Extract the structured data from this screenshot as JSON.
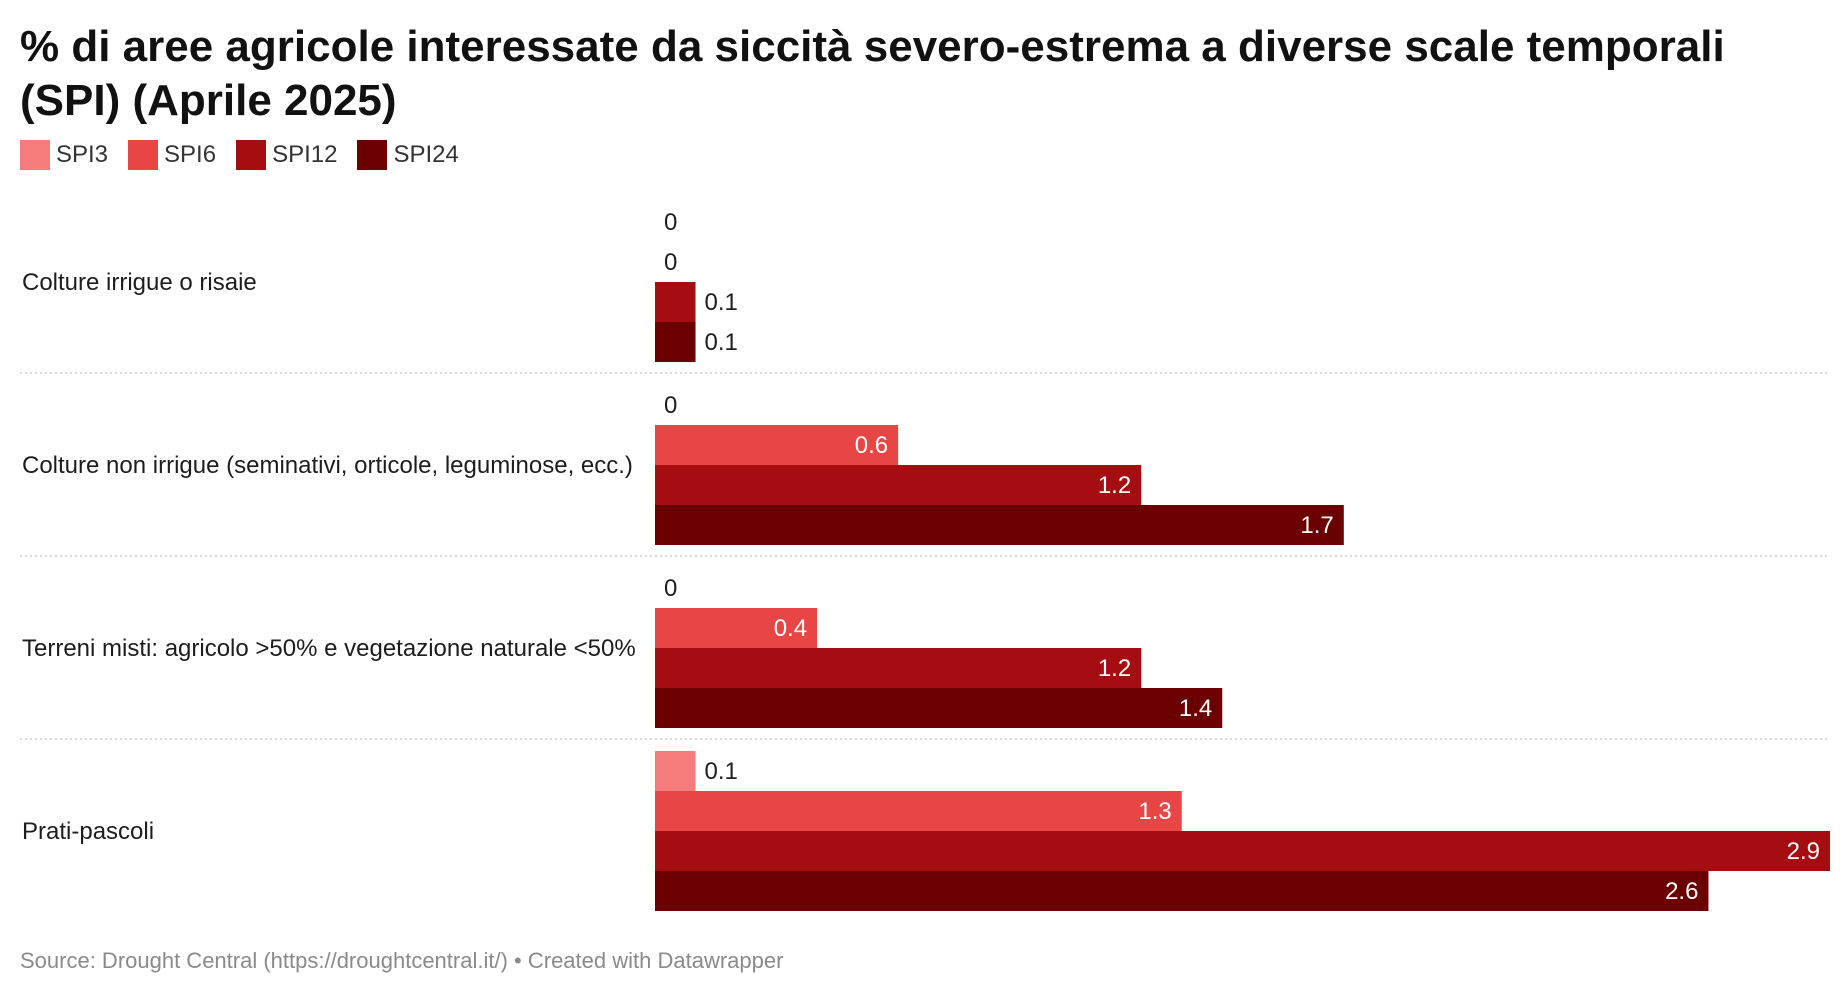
{
  "title": "% di aree agricole interessate da siccità severo-estrema a diverse scale temporali (SPI) (Aprile 2025)",
  "footer": {
    "source": "Source: Drought Central (https://droughtcentral.it/)",
    "separator": "•",
    "credit": "Created with Datawrapper"
  },
  "chart_data": {
    "type": "bar",
    "orientation": "horizontal",
    "title": "% di aree agricole interessate da siccità severo-estrema a diverse scale temporali (SPI) (Aprile 2025)",
    "categories": [
      "Colture irrigue o risaie",
      "Colture non irrigue (seminativi, orticole, leguminose, ecc.)",
      "Terreni misti: agricolo >50% e vegetazione naturale <50%",
      "Prati-pascoli"
    ],
    "series": [
      {
        "name": "SPI3",
        "color": "#f47c7c",
        "values": [
          0,
          0,
          0,
          0.1
        ]
      },
      {
        "name": "SPI6",
        "color": "#e84545",
        "values": [
          0,
          0.6,
          0.4,
          1.3
        ]
      },
      {
        "name": "SPI12",
        "color": "#a50d10",
        "values": [
          0.1,
          1.2,
          1.2,
          2.9
        ]
      },
      {
        "name": "SPI24",
        "color": "#6b0000",
        "values": [
          0.1,
          1.7,
          1.4,
          2.6
        ]
      }
    ],
    "xlim": [
      0,
      2.9
    ],
    "legend_position": "top-left",
    "grid": false,
    "value_labels": true
  }
}
